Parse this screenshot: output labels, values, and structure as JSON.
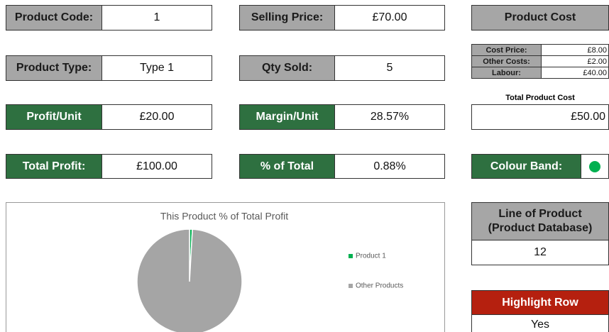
{
  "product_code": {
    "label": "Product Code:",
    "value": "1"
  },
  "selling_price": {
    "label": "Selling Price:",
    "value": "£70.00"
  },
  "product_type": {
    "label": "Product Type:",
    "value": "Type 1"
  },
  "qty_sold": {
    "label": "Qty Sold:",
    "value": "5"
  },
  "profit_unit": {
    "label": "Profit/Unit",
    "value": "£20.00"
  },
  "margin_unit": {
    "label": "Margin/Unit",
    "value": "28.57%"
  },
  "total_profit": {
    "label": "Total Profit:",
    "value": "£100.00"
  },
  "percent_total": {
    "label": "% of Total",
    "value": "0.88%"
  },
  "product_cost": {
    "title": "Product Cost",
    "rows": [
      [
        "Cost Price:",
        "£8.00"
      ],
      [
        "Other Costs:",
        "£2.00"
      ],
      [
        "Labour:",
        "£40.00"
      ]
    ],
    "total_label": "Total Product Cost",
    "total": "£50.00"
  },
  "colour_band": {
    "label": "Colour Band:",
    "color": "#00b050"
  },
  "line_of_product": {
    "label_lines": [
      "Line of Product",
      "(Product Database)"
    ],
    "value": "12"
  },
  "highlight_row": {
    "label": "Highlight Row",
    "value": "Yes"
  },
  "chart": {
    "type": "pie",
    "title": "This Product % of Total Profit",
    "categories": [
      "Product 1",
      "Other Products"
    ],
    "values": [
      0.88,
      99.12
    ],
    "colors": [
      "#00b050",
      "#a5a5a5"
    ]
  }
}
